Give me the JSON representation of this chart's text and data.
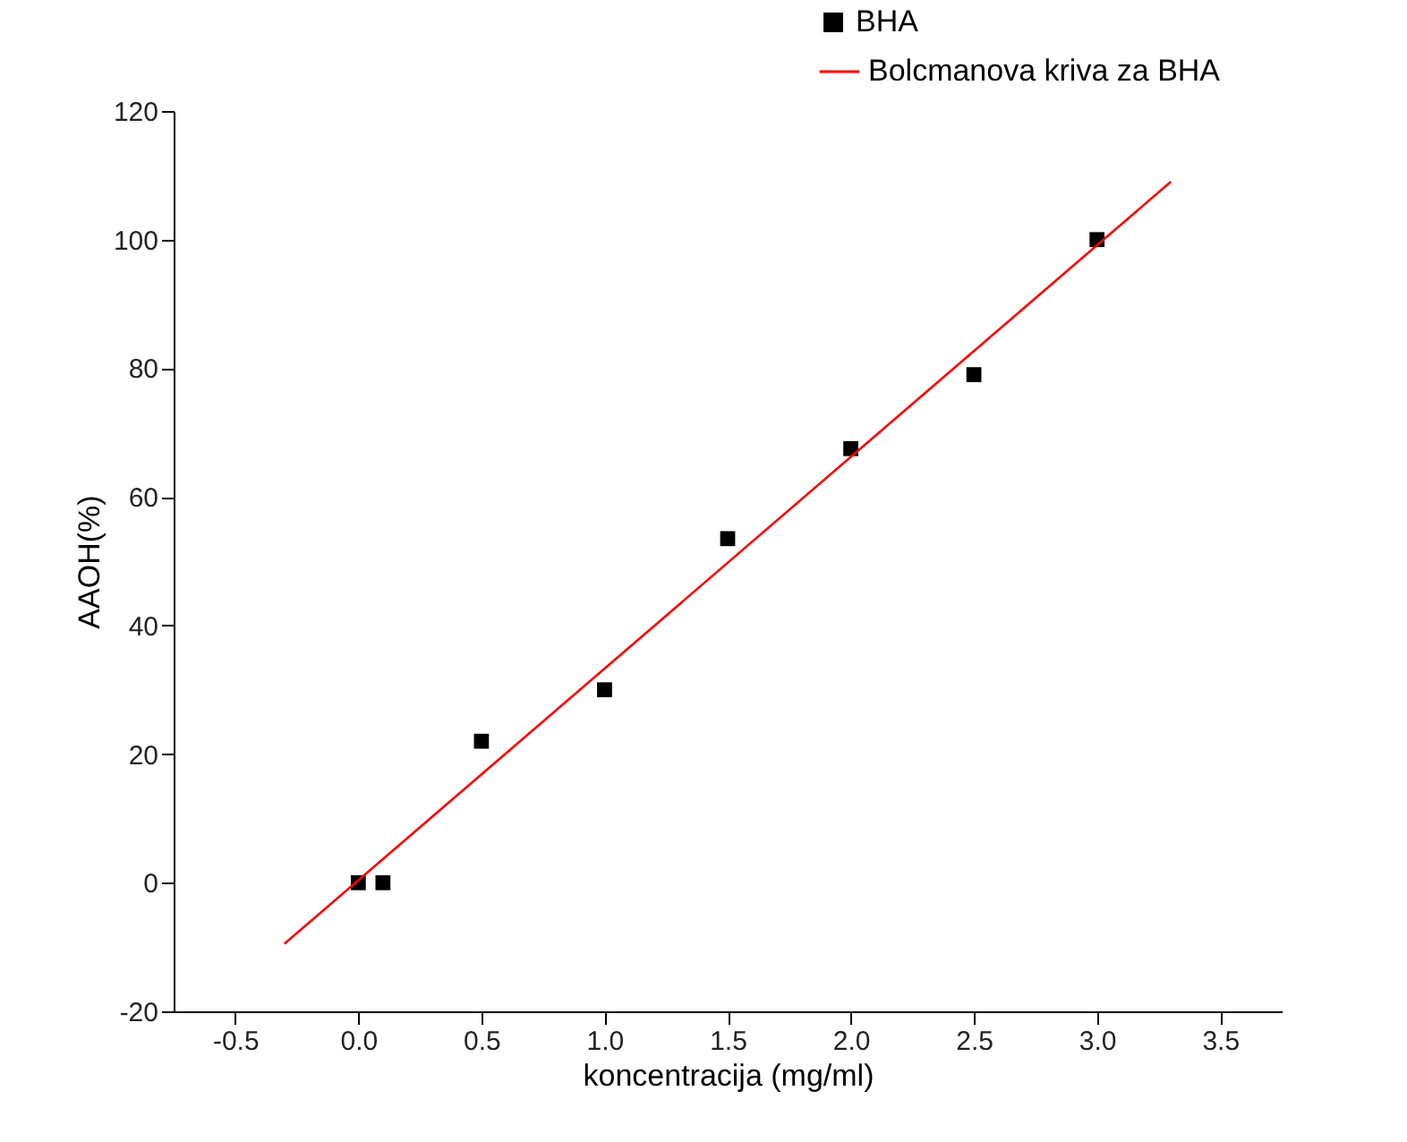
{
  "chart_data": {
    "type": "scatter",
    "xlabel": "koncentracija (mg/ml)",
    "ylabel": "AAOH(%)",
    "xlim": [
      -0.75,
      3.75
    ],
    "ylim": [
      -20,
      120
    ],
    "xticks": [
      -0.5,
      {
        "value": 0,
        "label": "0.0"
      },
      0.5,
      {
        "value": 1,
        "label": "1.0"
      },
      1.5,
      {
        "value": 2,
        "label": "2.0"
      },
      2.5,
      {
        "value": 3,
        "label": "3.0"
      },
      3.5
    ],
    "yticks": [
      -20,
      0,
      20,
      40,
      60,
      80,
      100,
      120
    ],
    "grid": false,
    "legend": "top right",
    "series": [
      {
        "name": "BHA",
        "marker": "square",
        "color": "#000000",
        "x": [
          0,
          0.1,
          0.5,
          1,
          1.5,
          2,
          2.5,
          3
        ],
        "values": [
          0,
          0,
          22,
          30,
          53.5,
          67.5,
          79,
          100
        ]
      },
      {
        "name": "Bolcmanova kriva za BHA",
        "type": "line",
        "marker": "none",
        "color": "#ff0000",
        "x": [
          -0.3,
          3.3
        ],
        "values": [
          -9.5,
          109
        ]
      }
    ]
  }
}
